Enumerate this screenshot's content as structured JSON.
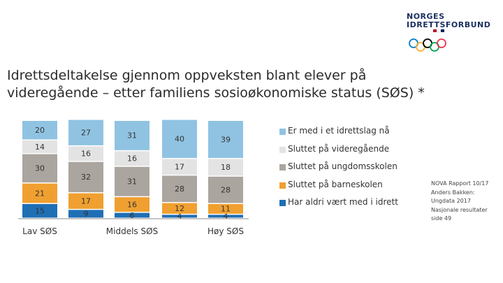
{
  "logo": {
    "line1": "NORGES",
    "line2": "IDRETTSFORBUND",
    "flag_colors": [
      "#ba0c2f",
      "#ffffff",
      "#00205b"
    ],
    "ring_colors": [
      "#0081c8",
      "#fcb131",
      "#000000",
      "#00a651",
      "#ee334e"
    ]
  },
  "title": {
    "line1": "Idrettsdeltakelse gjennom oppveksten blant elever på",
    "line2": "videregående – etter familiens sosioøkonomiske status (SØS) *"
  },
  "source": {
    "lines": [
      "NOVA Rapport 10/17",
      "Anders Bakken:",
      "Ungdata 2017",
      "Nasjonale resultater",
      "side 49"
    ]
  },
  "chart_data": {
    "type": "bar",
    "stacked": true,
    "categories": [
      "Lav SØS",
      "",
      "Middels SØS",
      "",
      "Høy SØS"
    ],
    "series": [
      {
        "name": "Har aldri vært med i idrett",
        "color": "#1f6fb5",
        "values": [
          15,
          9,
          6,
          4,
          4
        ]
      },
      {
        "name": "Sluttet på barneskolen",
        "color": "#f0a030",
        "values": [
          21,
          17,
          16,
          12,
          11
        ]
      },
      {
        "name": "Sluttet på ungdomsskolen",
        "color": "#aba59f",
        "values": [
          30,
          32,
          31,
          28,
          28
        ]
      },
      {
        "name": "Sluttet på videregående",
        "color": "#e3e3e3",
        "values": [
          14,
          16,
          16,
          17,
          18
        ]
      },
      {
        "name": "Er med i et idrettslag nå",
        "color": "#90c3e2",
        "values": [
          20,
          27,
          31,
          40,
          39
        ]
      }
    ],
    "legend_order": [
      4,
      3,
      2,
      1,
      0
    ],
    "legend_position": "right",
    "ylim": [
      0,
      100
    ],
    "grid": false
  }
}
